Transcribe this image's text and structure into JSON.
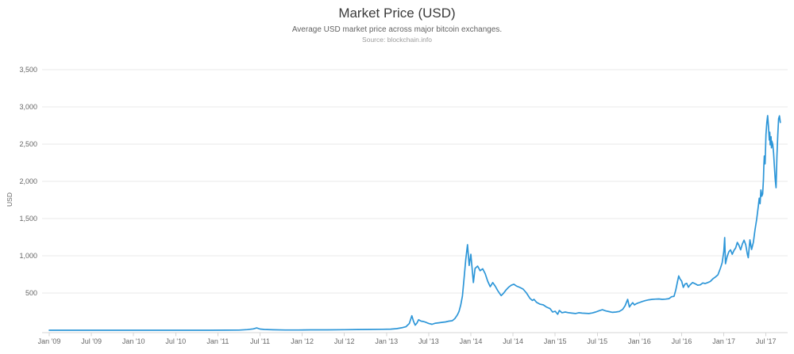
{
  "chart_data": {
    "type": "line",
    "title": "Market Price (USD)",
    "subtitle": "Average USD market price across major bitcoin exchanges.",
    "source": "Source: blockchain.info",
    "xlabel": "",
    "ylabel": "USD",
    "legend_position": "none",
    "grid": "horizontal-only",
    "xlim": [
      2009.0,
      2017.7
    ],
    "ylim": [
      0,
      3700
    ],
    "x_tick_labels": [
      "Jan '09",
      "Jul '09",
      "Jan '10",
      "Jul '10",
      "Jan '11",
      "Jul '11",
      "Jan '12",
      "Jul '12",
      "Jan '13",
      "Jul '13",
      "Jan '14",
      "Jul '14",
      "Jan '15",
      "Jul '15",
      "Jan '16",
      "Jul '16",
      "Jan '17",
      "Jul '17"
    ],
    "x_tick_values": [
      2009.0,
      2009.5,
      2010.0,
      2010.5,
      2011.0,
      2011.5,
      2012.0,
      2012.5,
      2013.0,
      2013.5,
      2014.0,
      2014.5,
      2015.0,
      2015.5,
      2016.0,
      2016.5,
      2017.0,
      2017.5
    ],
    "y_ticks": [
      {
        "value": 500,
        "label": "500"
      },
      {
        "value": 1000,
        "label": "1,000"
      },
      {
        "value": 1500,
        "label": "1,500"
      },
      {
        "value": 2000,
        "label": "2,000"
      },
      {
        "value": 2500,
        "label": "2,500"
      },
      {
        "value": 3000,
        "label": "3,000"
      },
      {
        "value": 3500,
        "label": "3,500"
      }
    ],
    "colors": {
      "line": "#2d96d8",
      "grid": "#e8e8e8",
      "axis": "#d4d4d4",
      "tick_text": "#666666"
    },
    "series": [
      {
        "name": "Market Price (USD)",
        "color": "#2d96d8",
        "points": [
          [
            2009.0,
            0
          ],
          [
            2009.5,
            0
          ],
          [
            2010.0,
            0
          ],
          [
            2010.5,
            0
          ],
          [
            2010.9,
            0.5
          ],
          [
            2011.1,
            1
          ],
          [
            2011.25,
            2
          ],
          [
            2011.35,
            9
          ],
          [
            2011.42,
            18
          ],
          [
            2011.46,
            31
          ],
          [
            2011.5,
            16
          ],
          [
            2011.55,
            11
          ],
          [
            2011.65,
            6
          ],
          [
            2011.8,
            3
          ],
          [
            2011.95,
            3
          ],
          [
            2012.1,
            5
          ],
          [
            2012.3,
            5
          ],
          [
            2012.5,
            7
          ],
          [
            2012.65,
            10
          ],
          [
            2012.8,
            11
          ],
          [
            2012.95,
            13
          ],
          [
            2013.05,
            15
          ],
          [
            2013.12,
            21
          ],
          [
            2013.18,
            33
          ],
          [
            2013.23,
            47
          ],
          [
            2013.27,
            90
          ],
          [
            2013.3,
            195
          ],
          [
            2013.32,
            120
          ],
          [
            2013.34,
            68
          ],
          [
            2013.36,
            95
          ],
          [
            2013.38,
            140
          ],
          [
            2013.41,
            122
          ],
          [
            2013.44,
            117
          ],
          [
            2013.47,
            105
          ],
          [
            2013.5,
            92
          ],
          [
            2013.54,
            80
          ],
          [
            2013.58,
            95
          ],
          [
            2013.62,
            100
          ],
          [
            2013.66,
            106
          ],
          [
            2013.7,
            112
          ],
          [
            2013.74,
            122
          ],
          [
            2013.78,
            128
          ],
          [
            2013.81,
            155
          ],
          [
            2013.84,
            205
          ],
          [
            2013.86,
            252
          ],
          [
            2013.88,
            340
          ],
          [
            2013.9,
            460
          ],
          [
            2013.92,
            700
          ],
          [
            2013.94,
            950
          ],
          [
            2013.96,
            1149
          ],
          [
            2013.98,
            870
          ],
          [
            2014.0,
            1020
          ],
          [
            2014.03,
            640
          ],
          [
            2014.05,
            830
          ],
          [
            2014.08,
            862
          ],
          [
            2014.11,
            800
          ],
          [
            2014.14,
            825
          ],
          [
            2014.17,
            760
          ],
          [
            2014.2,
            660
          ],
          [
            2014.23,
            585
          ],
          [
            2014.26,
            640
          ],
          [
            2014.29,
            590
          ],
          [
            2014.32,
            530
          ],
          [
            2014.36,
            465
          ],
          [
            2014.39,
            500
          ],
          [
            2014.42,
            545
          ],
          [
            2014.45,
            580
          ],
          [
            2014.48,
            605
          ],
          [
            2014.51,
            618
          ],
          [
            2014.54,
            595
          ],
          [
            2014.58,
            575
          ],
          [
            2014.62,
            553
          ],
          [
            2014.66,
            500
          ],
          [
            2014.7,
            430
          ],
          [
            2014.73,
            400
          ],
          [
            2014.75,
            415
          ],
          [
            2014.78,
            375
          ],
          [
            2014.82,
            350
          ],
          [
            2014.86,
            340
          ],
          [
            2014.9,
            310
          ],
          [
            2014.94,
            290
          ],
          [
            2014.97,
            245
          ],
          [
            2015.0,
            255
          ],
          [
            2015.03,
            215
          ],
          [
            2015.05,
            266
          ],
          [
            2015.08,
            235
          ],
          [
            2015.12,
            245
          ],
          [
            2015.16,
            235
          ],
          [
            2015.2,
            230
          ],
          [
            2015.24,
            225
          ],
          [
            2015.28,
            235
          ],
          [
            2015.32,
            230
          ],
          [
            2015.36,
            228
          ],
          [
            2015.4,
            225
          ],
          [
            2015.44,
            232
          ],
          [
            2015.48,
            245
          ],
          [
            2015.52,
            262
          ],
          [
            2015.56,
            275
          ],
          [
            2015.6,
            260
          ],
          [
            2015.64,
            250
          ],
          [
            2015.68,
            240
          ],
          [
            2015.72,
            245
          ],
          [
            2015.76,
            252
          ],
          [
            2015.8,
            280
          ],
          [
            2015.83,
            330
          ],
          [
            2015.86,
            415
          ],
          [
            2015.88,
            312
          ],
          [
            2015.9,
            345
          ],
          [
            2015.92,
            370
          ],
          [
            2015.94,
            340
          ],
          [
            2015.96,
            355
          ],
          [
            2015.98,
            365
          ],
          [
            2016.0,
            372
          ],
          [
            2016.03,
            385
          ],
          [
            2016.07,
            398
          ],
          [
            2016.11,
            408
          ],
          [
            2016.15,
            415
          ],
          [
            2016.19,
            418
          ],
          [
            2016.23,
            420
          ],
          [
            2016.27,
            415
          ],
          [
            2016.31,
            418
          ],
          [
            2016.35,
            425
          ],
          [
            2016.38,
            450
          ],
          [
            2016.41,
            455
          ],
          [
            2016.43,
            540
          ],
          [
            2016.45,
            650
          ],
          [
            2016.465,
            730
          ],
          [
            2016.48,
            690
          ],
          [
            2016.5,
            660
          ],
          [
            2016.52,
            575
          ],
          [
            2016.54,
            620
          ],
          [
            2016.56,
            630
          ],
          [
            2016.58,
            578
          ],
          [
            2016.6,
            610
          ],
          [
            2016.63,
            640
          ],
          [
            2016.66,
            625
          ],
          [
            2016.69,
            605
          ],
          [
            2016.72,
            610
          ],
          [
            2016.75,
            635
          ],
          [
            2016.78,
            628
          ],
          [
            2016.81,
            640
          ],
          [
            2016.84,
            655
          ],
          [
            2016.87,
            690
          ],
          [
            2016.9,
            715
          ],
          [
            2016.93,
            745
          ],
          [
            2016.96,
            835
          ],
          [
            2016.98,
            905
          ],
          [
            2017.0,
            1060
          ],
          [
            2017.01,
            1245
          ],
          [
            2017.02,
            894
          ],
          [
            2017.04,
            990
          ],
          [
            2017.06,
            1055
          ],
          [
            2017.08,
            1080
          ],
          [
            2017.1,
            1020
          ],
          [
            2017.12,
            1070
          ],
          [
            2017.14,
            1105
          ],
          [
            2017.16,
            1180
          ],
          [
            2017.18,
            1140
          ],
          [
            2017.2,
            1080
          ],
          [
            2017.22,
            1160
          ],
          [
            2017.24,
            1210
          ],
          [
            2017.26,
            1150
          ],
          [
            2017.28,
            1020
          ],
          [
            2017.29,
            975
          ],
          [
            2017.31,
            1215
          ],
          [
            2017.33,
            1085
          ],
          [
            2017.35,
            1180
          ],
          [
            2017.37,
            1350
          ],
          [
            2017.39,
            1490
          ],
          [
            2017.41,
            1670
          ],
          [
            2017.42,
            1775
          ],
          [
            2017.43,
            1700
          ],
          [
            2017.44,
            1885
          ],
          [
            2017.45,
            1800
          ],
          [
            2017.46,
            1830
          ],
          [
            2017.47,
            2020
          ],
          [
            2017.475,
            2200
          ],
          [
            2017.48,
            2340
          ],
          [
            2017.49,
            2235
          ],
          [
            2017.5,
            2630
          ],
          [
            2017.51,
            2790
          ],
          [
            2017.52,
            2883
          ],
          [
            2017.53,
            2730
          ],
          [
            2017.54,
            2555
          ],
          [
            2017.545,
            2660
          ],
          [
            2017.55,
            2490
          ],
          [
            2017.56,
            2600
          ],
          [
            2017.565,
            2450
          ],
          [
            2017.57,
            2540
          ],
          [
            2017.58,
            2500
          ],
          [
            2017.59,
            2380
          ],
          [
            2017.6,
            2200
          ],
          [
            2017.61,
            2020
          ],
          [
            2017.62,
            1915
          ],
          [
            2017.63,
            2340
          ],
          [
            2017.64,
            2630
          ],
          [
            2017.65,
            2840
          ],
          [
            2017.66,
            2880
          ],
          [
            2017.67,
            2790
          ]
        ]
      }
    ]
  }
}
